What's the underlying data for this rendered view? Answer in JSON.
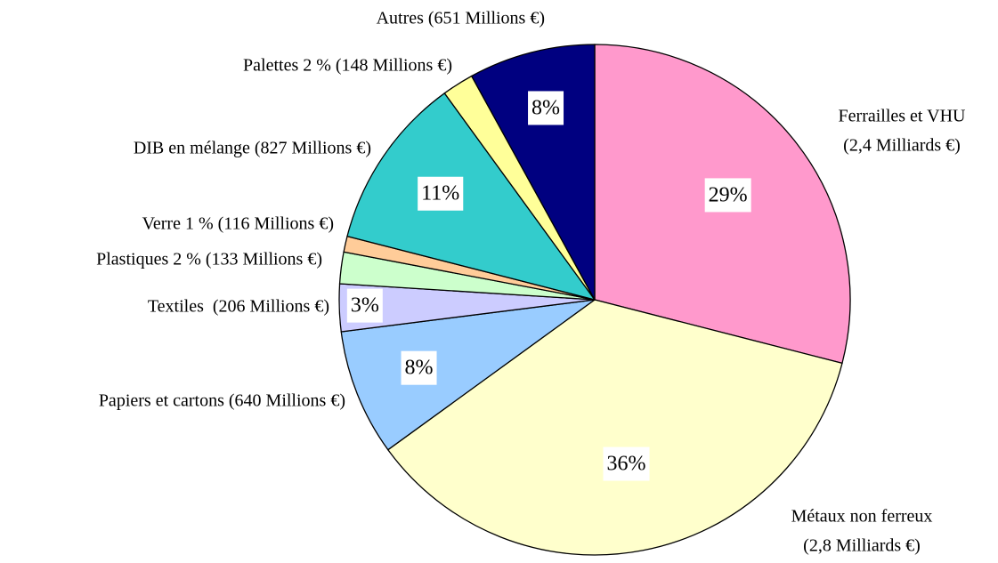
{
  "chart_data": {
    "type": "pie",
    "categories": [
      [
        "Ferrailles et VHU",
        "(2,4 Milliards €)"
      ],
      [
        "Métaux non ferreux",
        "(2,8 Milliards €)"
      ],
      [
        "Papiers et cartons (640 Millions €)"
      ],
      [
        "Textiles  (206 Millions €)"
      ],
      [
        "Plastiques 2 % (133 Millions €)"
      ],
      [
        "Verre 1 % (116 Millions €)"
      ],
      [
        "DIB en mélange (827 Millions €)"
      ],
      [
        "Palettes 2 % (148 Millions €)"
      ],
      [
        "Autres (651 Millions €)"
      ]
    ],
    "values": [
      29,
      36,
      8,
      3,
      2,
      1,
      11,
      2,
      8
    ],
    "value_labels": [
      "29%",
      "36%",
      "8%",
      "3%",
      null,
      null,
      "11%",
      null,
      "8%"
    ],
    "colors": [
      "#FF99CC",
      "#FFFFCC",
      "#99CCFF",
      "#CCCCFF",
      "#CCFFCC",
      "#FFCC99",
      "#33CCCC",
      "#FFFF99",
      "#000080"
    ]
  }
}
